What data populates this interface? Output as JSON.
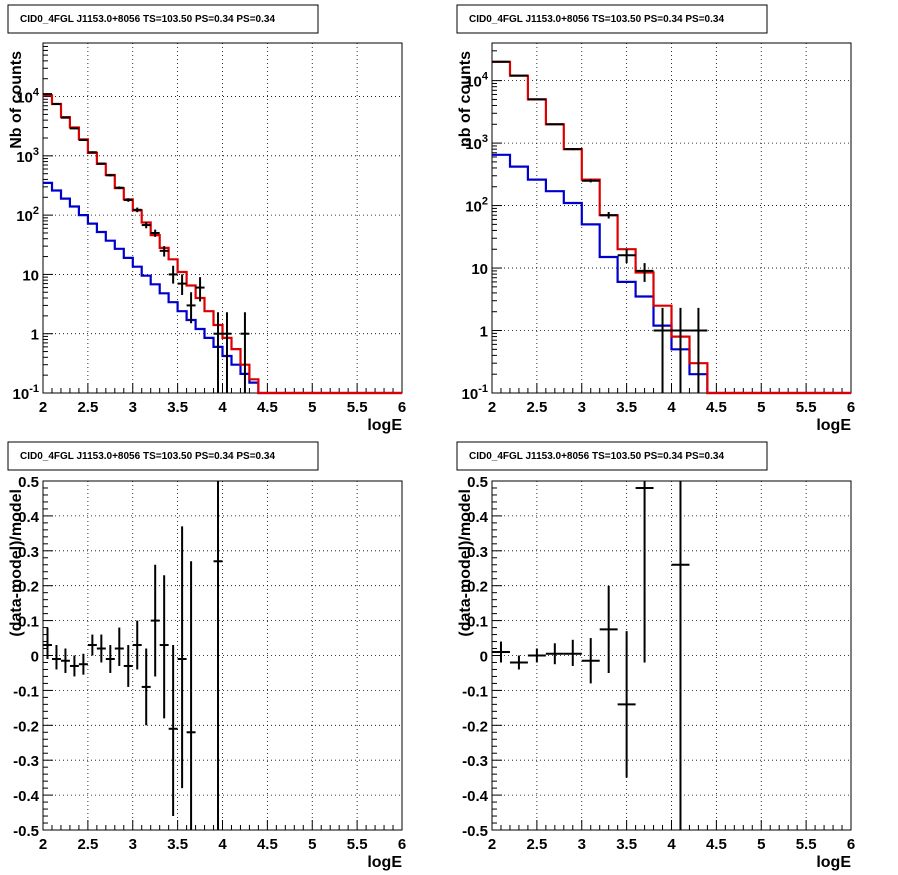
{
  "chart_data": [
    {
      "type": "line",
      "title": "CID0_4FGL J1153.0+8056 TS=103.50 PS=0.34 PS=0.34",
      "xlabel": "logE",
      "ylabel": "Nb of counts",
      "ylog": true,
      "xlim": [
        2,
        6
      ],
      "ylim": [
        0.1,
        80000
      ],
      "grid": true,
      "xticks": [
        "2",
        "2.5",
        "3",
        "3.5",
        "4",
        "4.5",
        "5",
        "5.5",
        "6"
      ],
      "yticks": [
        "10^-1",
        "1",
        "10",
        "10^2",
        "10^3",
        "10^4"
      ],
      "bin_edges": [
        2.0,
        2.1,
        2.2,
        2.3,
        2.4,
        2.5,
        2.6,
        2.7,
        2.8,
        2.9,
        3.0,
        3.1,
        3.2,
        3.3,
        3.4,
        3.5,
        3.6,
        3.7,
        3.8,
        3.9,
        4.0,
        4.1,
        4.2,
        4.3,
        4.4,
        6.0
      ],
      "series": [
        {
          "color": "#0000cc",
          "values": [
            350,
            260,
            190,
            140,
            100,
            72,
            52,
            37,
            27,
            19,
            13.5,
            9.5,
            6.8,
            4.8,
            3.4,
            2.4,
            1.7,
            1.2,
            0.85,
            0.6,
            0.42,
            0.3,
            0.21,
            0.15,
            0.1
          ]
        },
        {
          "color": "#dd0000",
          "values": [
            10500,
            7500,
            4500,
            3000,
            1900,
            1120,
            730,
            475,
            285,
            185,
            120,
            75,
            46,
            28,
            18,
            11,
            6.5,
            4,
            2.4,
            1.4,
            0.85,
            0.55,
            0.3,
            0.17,
            0.1
          ]
        }
      ],
      "points": [
        {
          "x": 2.05,
          "y": 11000,
          "ex": 0.05,
          "lo": 10800,
          "hi": 11200
        },
        {
          "x": 2.15,
          "y": 7500,
          "ex": 0.05,
          "lo": 7350,
          "hi": 7650
        },
        {
          "x": 2.25,
          "y": 4400,
          "ex": 0.05,
          "lo": 4300,
          "hi": 4500
        },
        {
          "x": 2.35,
          "y": 2900,
          "ex": 0.05,
          "lo": 2830,
          "hi": 2970
        },
        {
          "x": 2.45,
          "y": 1850,
          "ex": 0.05,
          "lo": 1800,
          "hi": 1900
        },
        {
          "x": 2.55,
          "y": 1150,
          "ex": 0.05,
          "lo": 1110,
          "hi": 1190
        },
        {
          "x": 2.65,
          "y": 740,
          "ex": 0.05,
          "lo": 715,
          "hi": 765
        },
        {
          "x": 2.75,
          "y": 470,
          "ex": 0.05,
          "lo": 450,
          "hi": 490
        },
        {
          "x": 2.85,
          "y": 290,
          "ex": 0.05,
          "lo": 275,
          "hi": 305
        },
        {
          "x": 2.95,
          "y": 180,
          "ex": 0.05,
          "lo": 168,
          "hi": 192
        },
        {
          "x": 3.05,
          "y": 123,
          "ex": 0.05,
          "lo": 112,
          "hi": 134
        },
        {
          "x": 3.15,
          "y": 68,
          "ex": 0.05,
          "lo": 60,
          "hi": 76
        },
        {
          "x": 3.25,
          "y": 50,
          "ex": 0.05,
          "lo": 43,
          "hi": 57
        },
        {
          "x": 3.35,
          "y": 25,
          "ex": 0.05,
          "lo": 20,
          "hi": 30
        },
        {
          "x": 3.45,
          "y": 10,
          "ex": 0.05,
          "lo": 7,
          "hi": 14
        },
        {
          "x": 3.55,
          "y": 7,
          "ex": 0.05,
          "lo": 4.5,
          "hi": 10
        },
        {
          "x": 3.65,
          "y": 3,
          "ex": 0.05,
          "lo": 1.5,
          "hi": 5
        },
        {
          "x": 3.75,
          "y": 6,
          "ex": 0.05,
          "lo": 3.5,
          "hi": 9
        },
        {
          "x": 3.95,
          "y": 1,
          "ex": 0.05,
          "lo": 0.1,
          "hi": 2.3
        },
        {
          "x": 4.05,
          "y": 1,
          "ex": 0.05,
          "lo": 0.1,
          "hi": 2.3
        },
        {
          "x": 4.25,
          "y": 1,
          "ex": 0.05,
          "lo": 0.1,
          "hi": 2.3
        }
      ]
    },
    {
      "type": "line",
      "title": "CID0_4FGL J1153.0+8056 TS=103.50 PS=0.34 PS=0.34",
      "xlabel": "logE",
      "ylabel": "nb of counts",
      "ylog": true,
      "xlim": [
        2,
        6
      ],
      "ylim": [
        0.1,
        40000
      ],
      "grid": true,
      "xticks": [
        "2",
        "2.5",
        "3",
        "3.5",
        "4",
        "4.5",
        "5",
        "5.5",
        "6"
      ],
      "yticks": [
        "10^-1",
        "1",
        "10",
        "10^2",
        "10^3",
        "10^4"
      ],
      "bin_edges": [
        2.0,
        2.2,
        2.4,
        2.6,
        2.8,
        3.0,
        3.2,
        3.4,
        3.6,
        3.8,
        4.0,
        4.2,
        4.4,
        6.0
      ],
      "series": [
        {
          "color": "#0000cc",
          "values": [
            650,
            420,
            260,
            170,
            110,
            50,
            15,
            6,
            3.5,
            1.2,
            0.5,
            0.2,
            0.1
          ]
        },
        {
          "color": "#dd0000",
          "values": [
            20000,
            12000,
            5000,
            2000,
            800,
            260,
            70,
            20,
            8.5,
            2.5,
            0.8,
            0.3,
            0.1
          ]
        }
      ],
      "points": [
        {
          "x": 2.1,
          "y": 20000,
          "ex": 0.1,
          "lo": 19700,
          "hi": 20300
        },
        {
          "x": 2.3,
          "y": 12000,
          "ex": 0.1,
          "lo": 11800,
          "hi": 12200
        },
        {
          "x": 2.5,
          "y": 5000,
          "ex": 0.1,
          "lo": 4900,
          "hi": 5100
        },
        {
          "x": 2.7,
          "y": 2000,
          "ex": 0.1,
          "lo": 1950,
          "hi": 2050
        },
        {
          "x": 2.9,
          "y": 800,
          "ex": 0.1,
          "lo": 770,
          "hi": 830
        },
        {
          "x": 3.1,
          "y": 250,
          "ex": 0.1,
          "lo": 235,
          "hi": 265
        },
        {
          "x": 3.3,
          "y": 70,
          "ex": 0.1,
          "lo": 62,
          "hi": 79
        },
        {
          "x": 3.5,
          "y": 16,
          "ex": 0.1,
          "lo": 12,
          "hi": 20
        },
        {
          "x": 3.7,
          "y": 9,
          "ex": 0.1,
          "lo": 6,
          "hi": 12
        },
        {
          "x": 3.9,
          "y": 1,
          "ex": 0.1,
          "lo": 0.1,
          "hi": 2.3
        },
        {
          "x": 4.1,
          "y": 1,
          "ex": 0.1,
          "lo": 0.1,
          "hi": 2.3
        },
        {
          "x": 4.3,
          "y": 1,
          "ex": 0.1,
          "lo": 0.1,
          "hi": 2.3
        }
      ]
    },
    {
      "type": "scatter",
      "title": "CID0_4FGL J1153.0+8056 TS=103.50 PS=0.34 PS=0.34",
      "xlabel": "logE",
      "ylabel": "(data-model)/model",
      "ylog": false,
      "xlim": [
        2,
        6
      ],
      "ylim": [
        -0.5,
        0.5
      ],
      "grid": true,
      "xticks": [
        "2",
        "2.5",
        "3",
        "3.5",
        "4",
        "4.5",
        "5",
        "5.5",
        "6"
      ],
      "yticks": [
        "-0.5",
        "-0.4",
        "-0.3",
        "-0.2",
        "-0.1",
        "0",
        "0.1",
        "0.2",
        "0.3",
        "0.4",
        "0.5"
      ],
      "points": [
        {
          "x": 2.05,
          "y": 0.03,
          "ex": 0.05,
          "lo": -0.01,
          "hi": 0.08
        },
        {
          "x": 2.15,
          "y": -0.01,
          "ex": 0.05,
          "lo": -0.04,
          "hi": 0.03
        },
        {
          "x": 2.25,
          "y": -0.015,
          "ex": 0.05,
          "lo": -0.05,
          "hi": 0.02
        },
        {
          "x": 2.35,
          "y": -0.03,
          "ex": 0.05,
          "lo": -0.06,
          "hi": 0.0
        },
        {
          "x": 2.45,
          "y": -0.025,
          "ex": 0.05,
          "lo": -0.055,
          "hi": 0.005
        },
        {
          "x": 2.55,
          "y": 0.03,
          "ex": 0.05,
          "lo": 0.0,
          "hi": 0.06
        },
        {
          "x": 2.65,
          "y": 0.02,
          "ex": 0.05,
          "lo": -0.02,
          "hi": 0.06
        },
        {
          "x": 2.75,
          "y": -0.01,
          "ex": 0.05,
          "lo": -0.05,
          "hi": 0.03
        },
        {
          "x": 2.85,
          "y": 0.02,
          "ex": 0.05,
          "lo": -0.03,
          "hi": 0.08
        },
        {
          "x": 2.95,
          "y": -0.03,
          "ex": 0.05,
          "lo": -0.09,
          "hi": 0.03
        },
        {
          "x": 3.05,
          "y": 0.03,
          "ex": 0.05,
          "lo": -0.04,
          "hi": 0.1
        },
        {
          "x": 3.15,
          "y": -0.09,
          "ex": 0.05,
          "lo": -0.2,
          "hi": 0.02
        },
        {
          "x": 3.25,
          "y": 0.1,
          "ex": 0.05,
          "lo": -0.06,
          "hi": 0.26
        },
        {
          "x": 3.35,
          "y": 0.03,
          "ex": 0.05,
          "lo": -0.18,
          "hi": 0.23
        },
        {
          "x": 3.45,
          "y": -0.21,
          "ex": 0.05,
          "lo": -0.46,
          "hi": 0.03
        },
        {
          "x": 3.55,
          "y": -0.01,
          "ex": 0.05,
          "lo": -0.38,
          "hi": 0.37
        },
        {
          "x": 3.65,
          "y": -0.22,
          "ex": 0.05,
          "lo": -0.5,
          "hi": 0.27
        },
        {
          "x": 3.95,
          "y": 0.27,
          "ex": 0.05,
          "lo": -0.5,
          "hi": 0.5
        }
      ]
    },
    {
      "type": "scatter",
      "title": "CID0_4FGL J1153.0+8056 TS=103.50 PS=0.34 PS=0.34",
      "xlabel": "logE",
      "ylabel": "(data-model)/model",
      "ylog": false,
      "xlim": [
        2,
        6
      ],
      "ylim": [
        -0.5,
        0.5
      ],
      "grid": true,
      "xticks": [
        "2",
        "2.5",
        "3",
        "3.5",
        "4",
        "4.5",
        "5",
        "5.5",
        "6"
      ],
      "yticks": [
        "-0.5",
        "-0.4",
        "-0.3",
        "-0.2",
        "-0.1",
        "0",
        "0.1",
        "0.2",
        "0.3",
        "0.4",
        "0.5"
      ],
      "points": [
        {
          "x": 2.1,
          "y": 0.01,
          "ex": 0.1,
          "lo": -0.02,
          "hi": 0.04
        },
        {
          "x": 2.3,
          "y": -0.02,
          "ex": 0.1,
          "lo": -0.04,
          "hi": 0.0
        },
        {
          "x": 2.5,
          "y": 0.0,
          "ex": 0.1,
          "lo": -0.02,
          "hi": 0.02
        },
        {
          "x": 2.7,
          "y": 0.005,
          "ex": 0.1,
          "lo": -0.025,
          "hi": 0.035
        },
        {
          "x": 2.9,
          "y": 0.005,
          "ex": 0.1,
          "lo": -0.03,
          "hi": 0.045
        },
        {
          "x": 3.1,
          "y": -0.015,
          "ex": 0.1,
          "lo": -0.08,
          "hi": 0.05
        },
        {
          "x": 3.3,
          "y": 0.075,
          "ex": 0.1,
          "lo": -0.05,
          "hi": 0.2
        },
        {
          "x": 3.5,
          "y": -0.14,
          "ex": 0.1,
          "lo": -0.35,
          "hi": 0.07
        },
        {
          "x": 3.7,
          "y": 0.48,
          "ex": 0.1,
          "lo": -0.02,
          "hi": 0.5
        },
        {
          "x": 4.1,
          "y": 0.26,
          "ex": 0.1,
          "lo": -0.5,
          "hi": 0.5
        }
      ]
    }
  ]
}
